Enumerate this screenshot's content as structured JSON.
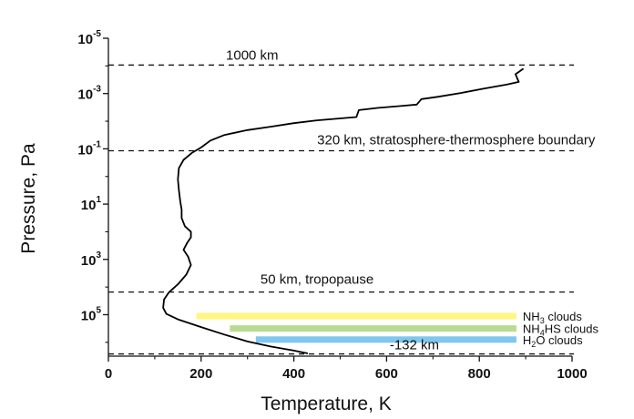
{
  "chart_data": {
    "type": "line",
    "xlabel": "Temperature, K",
    "ylabel": "Pressure, Pa",
    "xlim": [
      0,
      1000
    ],
    "ylim_exponent": [
      -5,
      6.5
    ],
    "y_scale": "log",
    "x_ticks": [
      0,
      200,
      400,
      600,
      800,
      1000
    ],
    "x_tick_labels": [
      "0",
      "200",
      "400",
      "600",
      "800",
      "1000"
    ],
    "y_ticks": [
      {
        "exp": -5,
        "base": "10",
        "sup": "-5"
      },
      {
        "exp": -3,
        "base": "10",
        "sup": "-3"
      },
      {
        "exp": -1,
        "base": "10",
        "sup": "-1"
      },
      {
        "exp": 1,
        "base": "10",
        "sup": "1"
      },
      {
        "exp": 3,
        "base": "10",
        "sup": "3"
      },
      {
        "exp": 5,
        "base": "10",
        "sup": "5"
      }
    ],
    "grid": false,
    "series": [
      {
        "color": "#000000",
        "points": [
          [
            430,
            6.4
          ],
          [
            400,
            6.3
          ],
          [
            350,
            6.15
          ],
          [
            300,
            5.97
          ],
          [
            250,
            5.72
          ],
          [
            200,
            5.45
          ],
          [
            150,
            5.17
          ],
          [
            125,
            4.97
          ],
          [
            118,
            4.75
          ],
          [
            120,
            4.45
          ],
          [
            130,
            4.2
          ],
          [
            150,
            3.9
          ],
          [
            168,
            3.55
          ],
          [
            178,
            3.2
          ],
          [
            172,
            2.9
          ],
          [
            162,
            2.65
          ],
          [
            170,
            2.4
          ],
          [
            178,
            2.2
          ],
          [
            178,
            2.0
          ],
          [
            165,
            1.8
          ],
          [
            158,
            1.5
          ],
          [
            158,
            1.2
          ],
          [
            155,
            0.9
          ],
          [
            152,
            0.5
          ],
          [
            150,
            0.1
          ],
          [
            152,
            -0.3
          ],
          [
            162,
            -0.6
          ],
          [
            180,
            -0.85
          ],
          [
            200,
            -1.05
          ],
          [
            220,
            -1.3
          ],
          [
            250,
            -1.5
          ],
          [
            300,
            -1.68
          ],
          [
            350,
            -1.8
          ],
          [
            400,
            -1.93
          ],
          [
            450,
            -2.03
          ],
          [
            500,
            -2.1
          ],
          [
            535,
            -2.15
          ],
          [
            540,
            -2.4
          ],
          [
            580,
            -2.48
          ],
          [
            630,
            -2.55
          ],
          [
            665,
            -2.6
          ],
          [
            675,
            -2.8
          ],
          [
            710,
            -2.88
          ],
          [
            760,
            -3.02
          ],
          [
            810,
            -3.18
          ],
          [
            860,
            -3.33
          ],
          [
            885,
            -3.42
          ],
          [
            878,
            -3.7
          ],
          [
            895,
            -3.9
          ]
        ]
      }
    ],
    "reference_lines": [
      {
        "exp": -4.03,
        "label": "1000 km",
        "label_x": 310,
        "label_dy": -6
      },
      {
        "exp": -0.93,
        "label": "320 km, stratosphere-thermosphere boundary",
        "label_x": 750,
        "label_dy": -7
      },
      {
        "exp": 4.18,
        "label": "50 km, tropopause",
        "label_x": 450,
        "label_dy": -9
      },
      {
        "exp": 6.42,
        "label": "-132  km",
        "label_x": 660,
        "label_dy": -5
      }
    ],
    "cloud_bands": [
      {
        "label_main": "NH",
        "label_sub": "3",
        "label_rest": " clouds",
        "x_start": 190,
        "x_end": 880,
        "exp": 5.05,
        "color": "#fff67d"
      },
      {
        "label_main": "NH",
        "label_sub": "4",
        "label_rest": "HS clouds",
        "x_start": 262,
        "x_end": 880,
        "exp": 5.5,
        "color": "#b7dc8f"
      },
      {
        "label_main": "H",
        "label_sub": "2",
        "label_rest": "O clouds",
        "x_start": 318,
        "x_end": 880,
        "exp": 5.9,
        "color": "#7fc7ec"
      }
    ]
  }
}
